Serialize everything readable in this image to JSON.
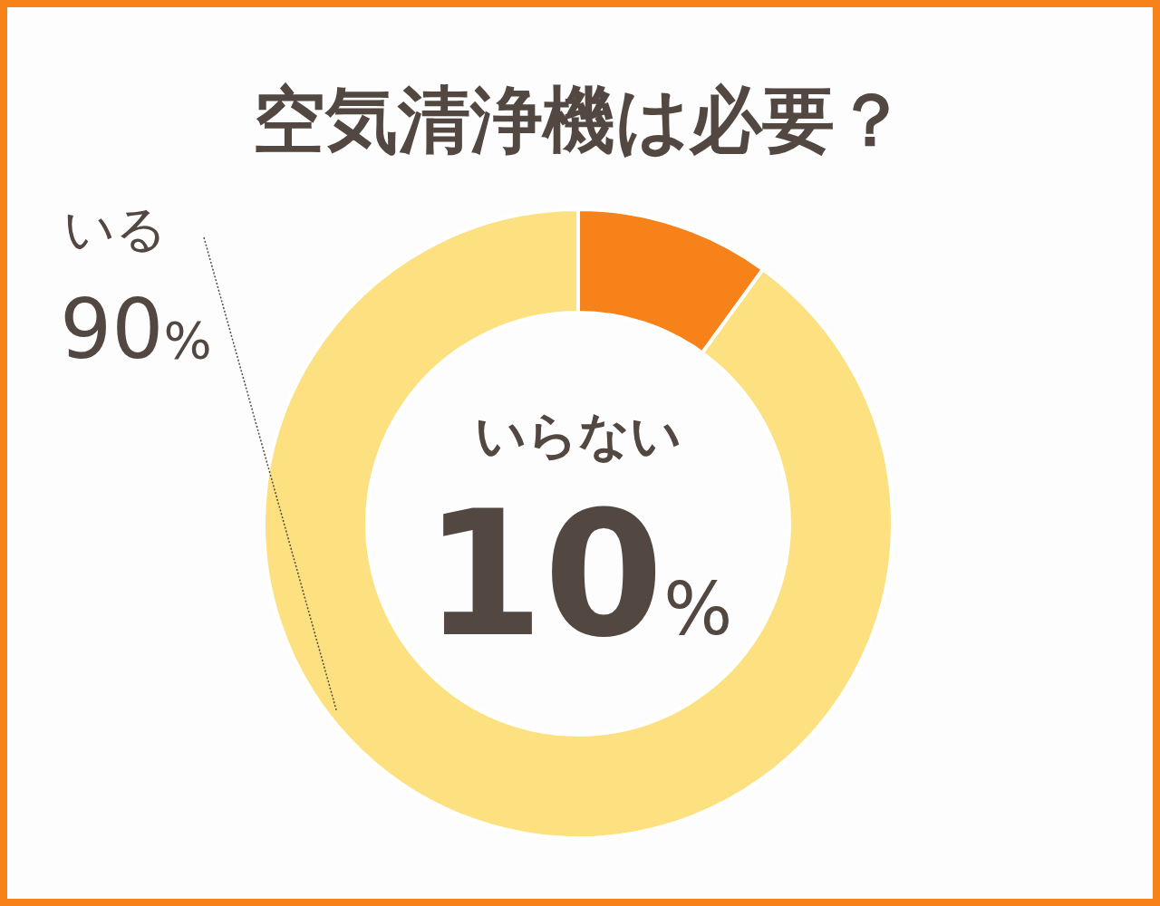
{
  "chart_data": {
    "type": "donut",
    "title": "空気清浄機は必要？",
    "categories": [
      "いらない",
      "いる"
    ],
    "values": [
      10,
      90
    ],
    "colors": [
      "#f8821a",
      "#fde07f"
    ],
    "value_labels": [
      "10%",
      "90%"
    ]
  }
}
